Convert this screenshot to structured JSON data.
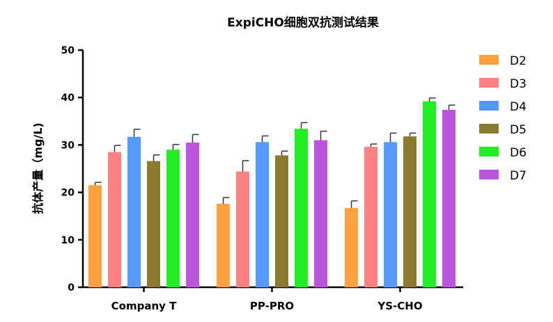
{
  "chart_data": {
    "type": "bar",
    "title": "ExpiCHO细胞双抗测试结果",
    "ylabel": "抗体产量（mg/L)",
    "xlabel": "",
    "ylim": [
      0,
      50
    ],
    "yticks": [
      "0",
      "10",
      "20",
      "30",
      "40",
      "50"
    ],
    "categories": [
      "Company T",
      "PP-PRO",
      "YS-CHO"
    ],
    "legend_position": "right",
    "grid": false,
    "series": [
      {
        "name": "D2",
        "color": "#ffa040",
        "values": [
          21.5,
          17.6,
          16.7
        ],
        "errors": [
          0.6,
          1.3,
          1.5
        ]
      },
      {
        "name": "D3",
        "color": "#ff8080",
        "values": [
          28.5,
          24.4,
          29.6
        ],
        "errors": [
          1.4,
          2.3,
          0.6
        ]
      },
      {
        "name": "D4",
        "color": "#5599ff",
        "values": [
          31.7,
          30.6,
          30.6
        ],
        "errors": [
          1.6,
          1.3,
          1.9
        ]
      },
      {
        "name": "D5",
        "color": "#8b7a30",
        "values": [
          26.6,
          27.8,
          31.8
        ],
        "errors": [
          1.3,
          0.9,
          0.7
        ]
      },
      {
        "name": "D6",
        "color": "#22ee22",
        "values": [
          29.0,
          33.4,
          39.2
        ],
        "errors": [
          1.1,
          1.3,
          0.7
        ]
      },
      {
        "name": "D7",
        "color": "#bb55dd",
        "values": [
          30.5,
          31.0,
          37.4
        ],
        "errors": [
          1.7,
          1.9,
          1.0
        ]
      }
    ]
  }
}
